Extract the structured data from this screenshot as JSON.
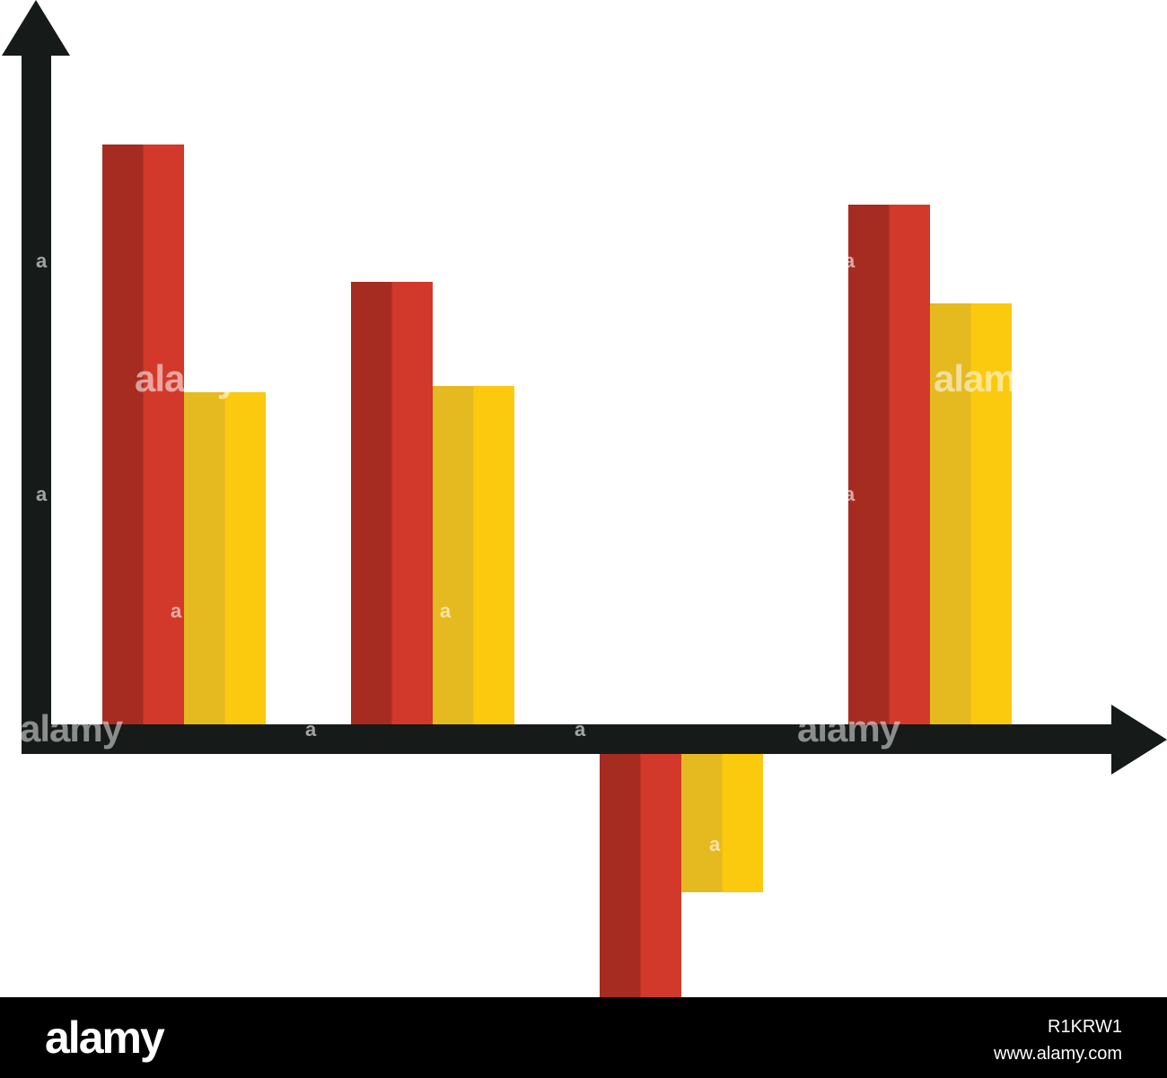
{
  "chart_data": {
    "type": "bar",
    "title": "",
    "xlabel": "",
    "ylabel": "",
    "categories": [
      "",
      "",
      "",
      ""
    ],
    "series": [
      {
        "color_dark": "#a62c22",
        "color_light": "#d2392a",
        "values": [
          646,
          493,
          -273,
          579
        ]
      },
      {
        "color_dark": "#e5b920",
        "color_light": "#fbc90d",
        "values": [
          370,
          377,
          -154,
          469
        ]
      }
    ],
    "ylim": [
      -273,
      780
    ],
    "grid": false,
    "axis_color": "#161a18"
  },
  "watermark": {
    "text": "alamy",
    "small_text": "a"
  },
  "footer": {
    "logo": "alamy",
    "image_id": "R1KRW1",
    "url": "www.alamy.com"
  }
}
